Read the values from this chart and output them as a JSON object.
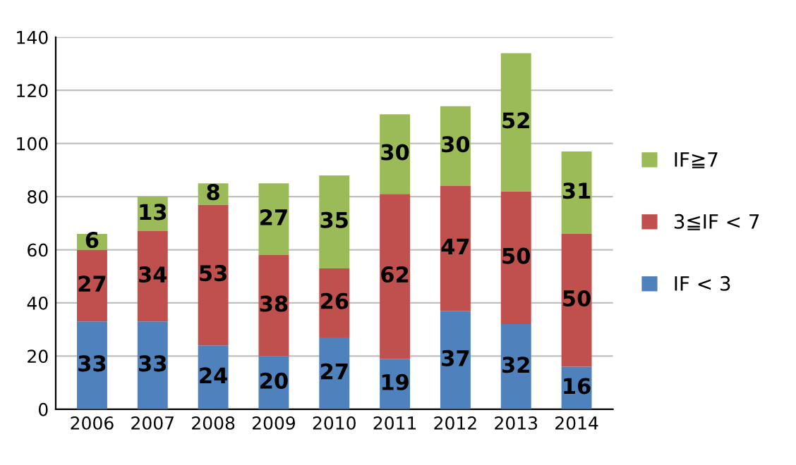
{
  "chart_data": {
    "type": "bar",
    "stacked": true,
    "categories": [
      "2006",
      "2007",
      "2008",
      "2009",
      "2010",
      "2011",
      "2012",
      "2013",
      "2014"
    ],
    "series": [
      {
        "name": "IF < 3",
        "color": "#4f81bd",
        "values": [
          33,
          33,
          24,
          20,
          27,
          19,
          37,
          32,
          16
        ]
      },
      {
        "name": "3≦IF < 7",
        "color": "#c0504d",
        "values": [
          27,
          34,
          53,
          38,
          26,
          62,
          47,
          50,
          50
        ]
      },
      {
        "name": "IF≧7",
        "color": "#9bbb59",
        "values": [
          6,
          13,
          8,
          27,
          35,
          30,
          30,
          52,
          31
        ]
      }
    ],
    "ylim": [
      0,
      140
    ],
    "yticks": [
      0,
      20,
      40,
      60,
      80,
      100,
      120,
      140
    ],
    "grid": "y",
    "legend": "right",
    "data_labels": true
  }
}
